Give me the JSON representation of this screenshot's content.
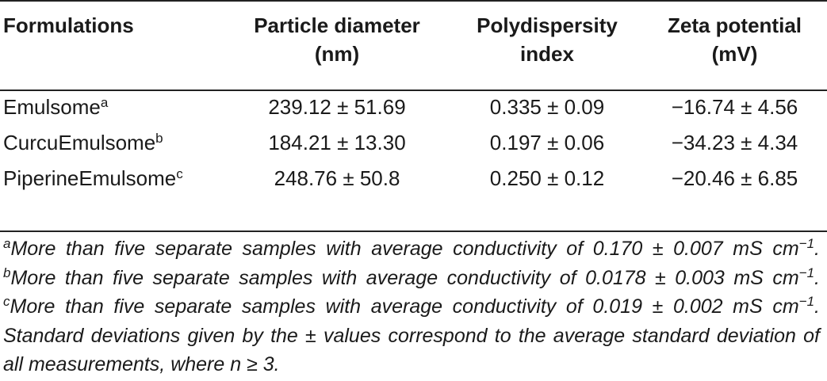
{
  "table": {
    "columns": [
      {
        "line1": "Formulations",
        "line2": ""
      },
      {
        "line1": "Particle diameter",
        "line2": "(nm)"
      },
      {
        "line1": "Polydispersity",
        "line2": "index"
      },
      {
        "line1": "Zeta potential",
        "line2": "(mV)"
      }
    ],
    "rows": [
      {
        "name": "Emulsome",
        "mark": "a",
        "diameter": "239.12 ± 51.69",
        "pdi": "0.335 ± 0.09",
        "zeta": "−16.74 ± 4.56"
      },
      {
        "name": "CurcuEmulsome",
        "mark": "b",
        "diameter": "184.21 ± 13.30",
        "pdi": "0.197 ± 0.06",
        "zeta": "−34.23 ± 4.34"
      },
      {
        "name": "PiperineEmulsome",
        "mark": "c",
        "diameter": "248.76 ± 50.8",
        "pdi": "0.250 ± 0.12",
        "zeta": "−20.46 ± 6.85"
      }
    ]
  },
  "footnotes": {
    "a_mark": "a",
    "a_text": "More than five separate samples with average conductivity of 0.170 ± 0.007 mS cm",
    "a_exp": "−1",
    "b_mark": "b",
    "b_text": "More than five separate samples with average conductivity of 0.0178 ± 0.003 mS cm",
    "b_exp": "−1",
    "c_mark": "c",
    "c_text": "More than five separate samples with average conductivity of 0.019 ± 0.002 mS cm",
    "c_exp": "−1",
    "tail": ". Standard deviations given by the ± values correspond to the average standard deviation of all measurements, where n ≥ 3."
  }
}
